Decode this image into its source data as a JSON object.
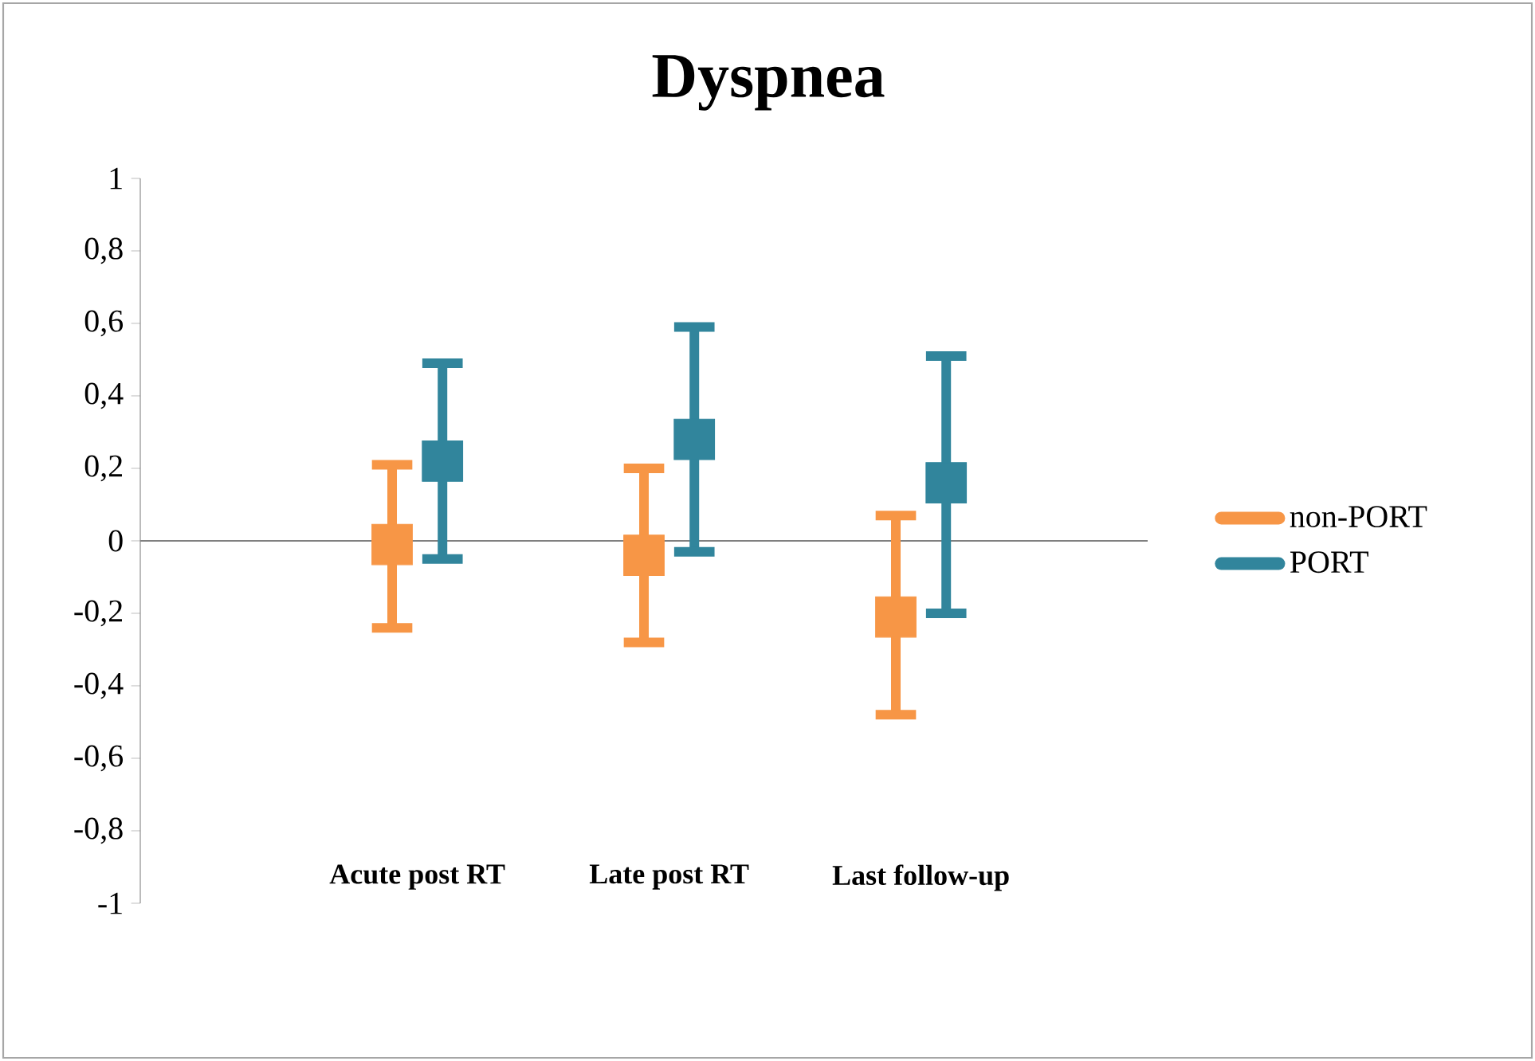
{
  "chart_data": {
    "type": "scatter",
    "title": "Dyspnea",
    "categories": [
      "Acute post RT",
      "Late post RT",
      "Last follow-up"
    ],
    "ylim": [
      -1,
      1
    ],
    "yticks": [
      {
        "value": -1,
        "label": "-1"
      },
      {
        "value": -0.8,
        "label": "-0,8"
      },
      {
        "value": -0.6,
        "label": "-0,6"
      },
      {
        "value": -0.4,
        "label": "-0,4"
      },
      {
        "value": -0.2,
        "label": "-0,2"
      },
      {
        "value": 0,
        "label": "0"
      },
      {
        "value": 0.2,
        "label": "0,2"
      },
      {
        "value": 0.4,
        "label": "0,4"
      },
      {
        "value": 0.6,
        "label": "0,6"
      },
      {
        "value": 0.8,
        "label": "0,8"
      },
      {
        "value": 1,
        "label": "1"
      }
    ],
    "marker": "square",
    "legend": "right",
    "series": [
      {
        "name": "non-PORT",
        "color": "#f79646",
        "values": [
          -0.01,
          -0.04,
          -0.21
        ],
        "errors": [
          [
            -0.24,
            0.21
          ],
          [
            -0.28,
            0.2
          ],
          [
            -0.48,
            0.07
          ]
        ]
      },
      {
        "name": "PORT",
        "color": "#31859c",
        "values": [
          0.22,
          0.28,
          0.16
        ],
        "errors": [
          [
            -0.05,
            0.49
          ],
          [
            -0.03,
            0.59
          ],
          [
            -0.2,
            0.51
          ]
        ]
      }
    ]
  }
}
